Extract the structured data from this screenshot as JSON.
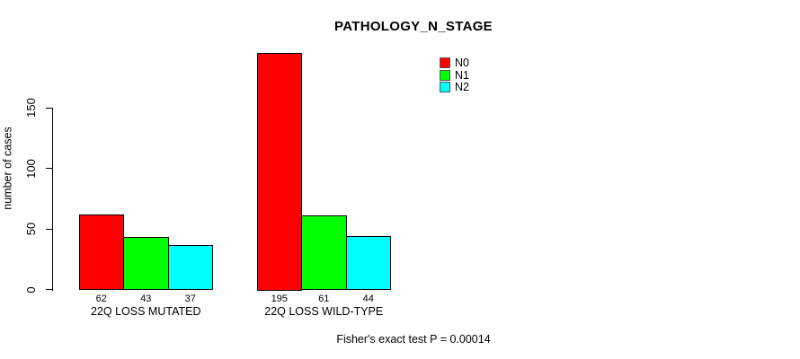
{
  "chart_data": {
    "type": "bar",
    "title": "PATHOLOGY_N_STAGE",
    "xlabel": "",
    "ylabel": "number of cases",
    "categories": [
      "22Q LOSS MUTATED",
      "22Q LOSS WILD-TYPE"
    ],
    "series": [
      {
        "name": "N0",
        "color": "#ff0000",
        "values": [
          62,
          195
        ]
      },
      {
        "name": "N1",
        "color": "#00ff00",
        "values": [
          43,
          61
        ]
      },
      {
        "name": "N2",
        "color": "#00ffff",
        "values": [
          37,
          44
        ]
      }
    ],
    "yticks": [
      0,
      50,
      100,
      150
    ],
    "ylim": [
      0,
      200
    ],
    "grid": false,
    "legend_position": "top-right",
    "bar_value_labels": true,
    "annotation": "Fisher's exact test P = 0.00014"
  }
}
